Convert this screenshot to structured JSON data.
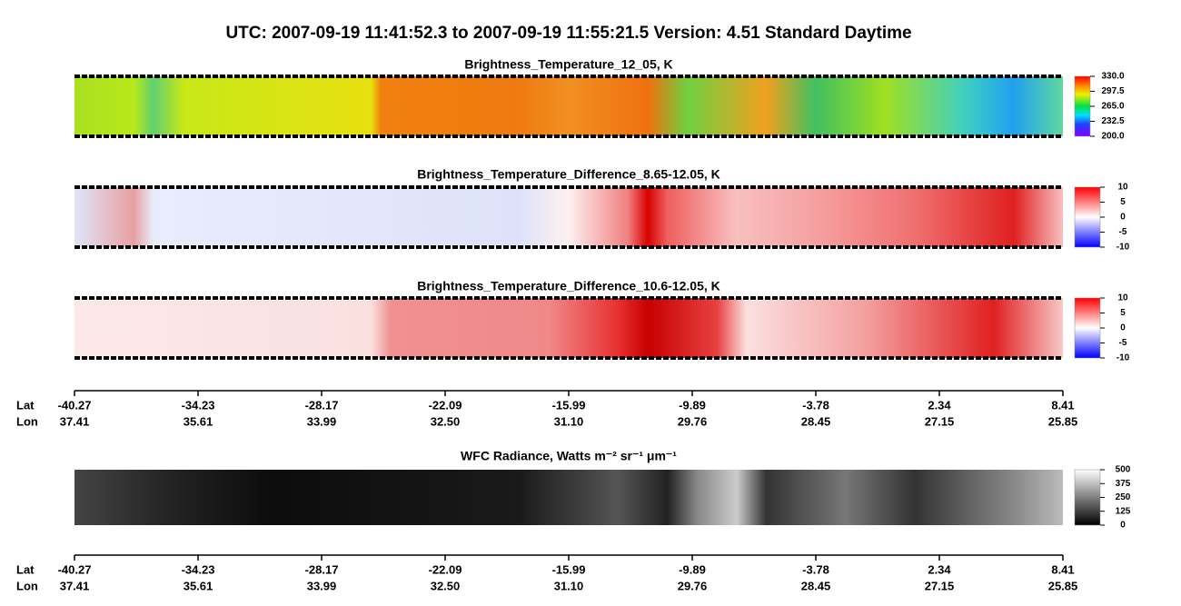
{
  "title": "UTC:  2007-09-19   11:41:52.3  to  2007-09-19   11:55:21.5    Version: 4.51  Standard Daytime",
  "panels": [
    {
      "title": "Brightness_Temperature_12_05, K",
      "colorbar": {
        "lim": [
          200,
          330
        ],
        "ticks": [
          {
            "value": 330,
            "label": "330.0"
          },
          {
            "value": 297.5,
            "label": "297.5"
          },
          {
            "value": 265,
            "label": "265.0"
          },
          {
            "value": 232.5,
            "label": "232.5"
          },
          {
            "value": 200,
            "label": "200.0"
          }
        ]
      }
    },
    {
      "title": "Brightness_Temperature_Difference_8.65-12.05, K",
      "colorbar": {
        "lim": [
          -10,
          10
        ],
        "ticks": [
          10,
          5,
          0,
          -5,
          -10
        ]
      }
    },
    {
      "title": "Brightness_Temperature_Difference_10.6-12.05, K",
      "colorbar": {
        "lim": [
          -10,
          10
        ],
        "ticks": [
          10,
          5,
          0,
          -5,
          -10
        ]
      }
    },
    {
      "title": "WFC Radiance, Watts m⁻² sr⁻¹ μm⁻¹",
      "colorbar": {
        "lim": [
          0,
          500
        ],
        "ticks": [
          500,
          375,
          250,
          125,
          0
        ]
      }
    }
  ],
  "axes": [
    {
      "lat_label": "Lat",
      "lon_label": "Lon",
      "lat": [
        "-40.27",
        "-34.23",
        "-28.17",
        "-22.09",
        "-15.99",
        "-9.89",
        "-3.78",
        "2.34",
        "8.41"
      ],
      "lon": [
        "37.41",
        "35.61",
        "33.99",
        "32.50",
        "31.10",
        "29.76",
        "28.45",
        "27.15",
        "25.85"
      ]
    },
    {
      "lat_label": "Lat",
      "lon_label": "Lon",
      "lat": [
        "-40.27",
        "-34.23",
        "-28.17",
        "-22.09",
        "-15.99",
        "-9.89",
        "-3.78",
        "2.34",
        "8.41"
      ],
      "lon": [
        "37.41",
        "35.61",
        "33.99",
        "32.50",
        "31.10",
        "29.76",
        "28.45",
        "27.15",
        "25.85"
      ]
    }
  ]
}
